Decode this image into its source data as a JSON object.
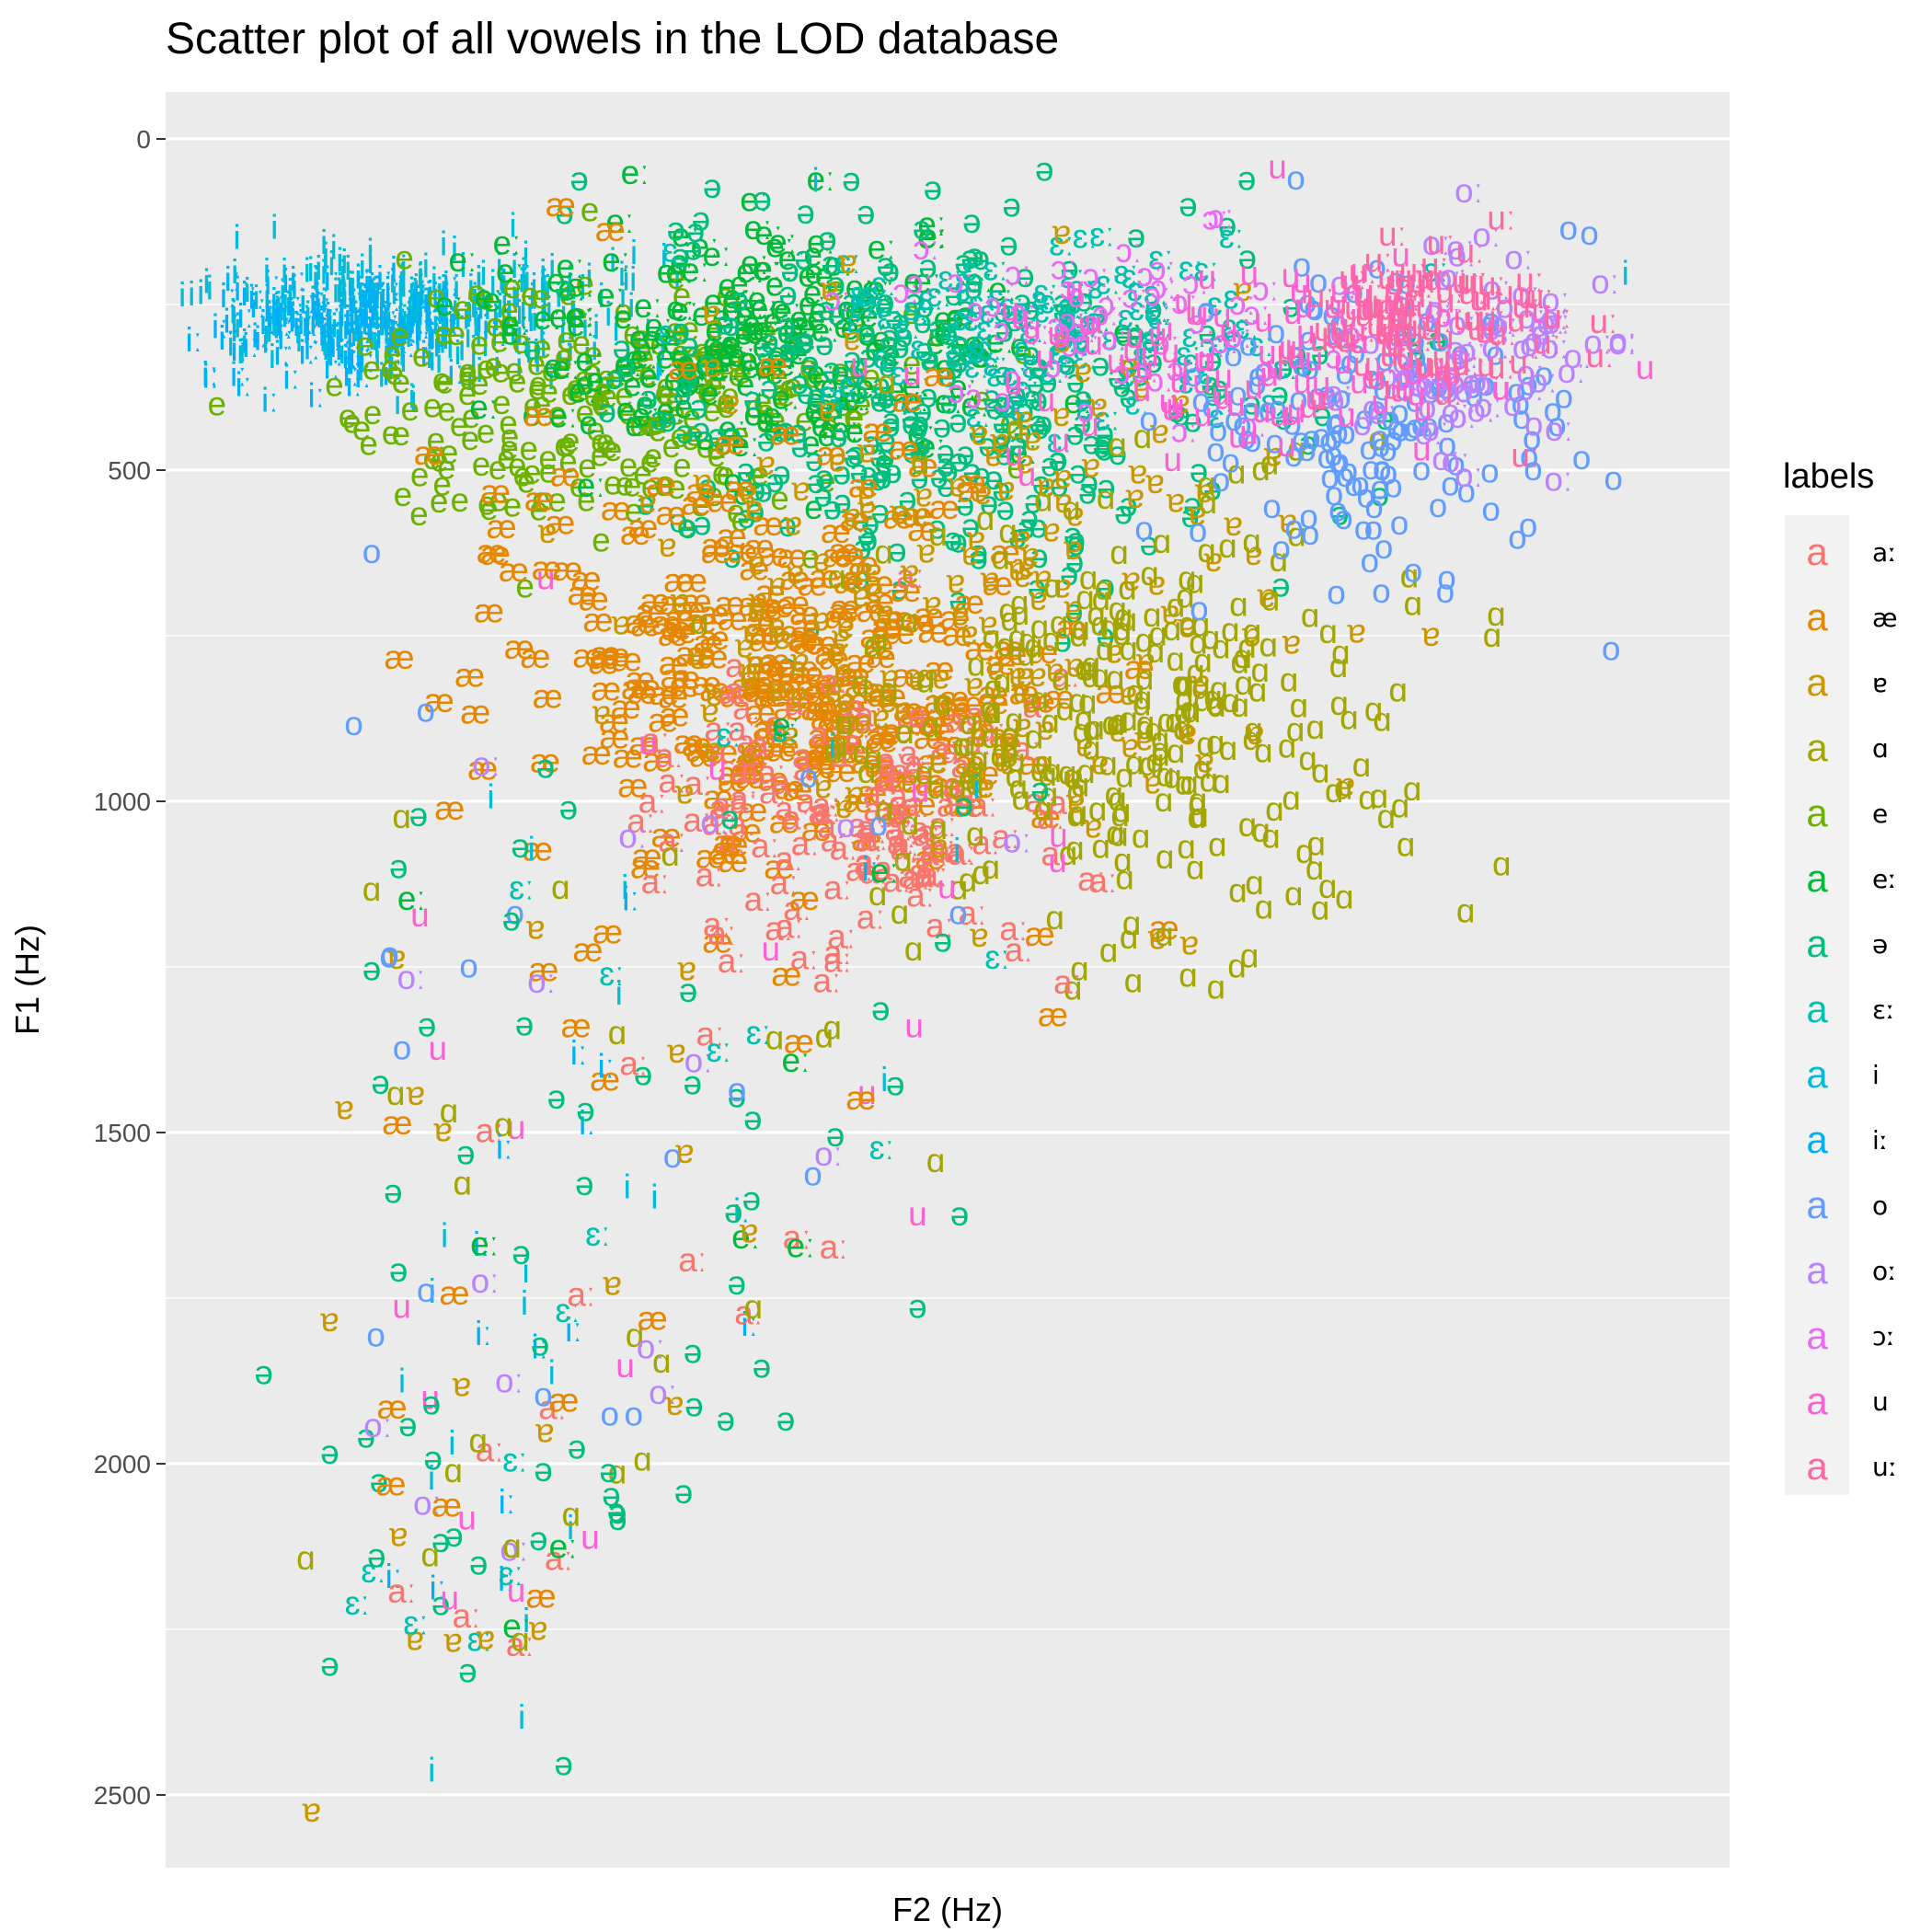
{
  "chart_data": {
    "type": "scatter",
    "title": "Scatter plot of all vowels in the LOD database",
    "xlabel": "F2 (Hz)",
    "ylabel": "F1 (Hz)",
    "ylim": [
      0,
      2600
    ],
    "y_reversed": true,
    "y_ticks": [
      0,
      500,
      1000,
      1500,
      2000,
      2500
    ],
    "x_ticks_shown": false,
    "grid": true,
    "legend": {
      "title": "labels",
      "placement": "right",
      "key_glyph": "a",
      "entries": [
        {
          "label": "aː",
          "color": "#F8766D"
        },
        {
          "label": "æ",
          "color": "#E58700"
        },
        {
          "label": "ɐ",
          "color": "#C99800"
        },
        {
          "label": "ɑ",
          "color": "#A3A500"
        },
        {
          "label": "e",
          "color": "#6BB100"
        },
        {
          "label": "eː",
          "color": "#00BA38"
        },
        {
          "label": "ə",
          "color": "#00BF7D"
        },
        {
          "label": "ɛː",
          "color": "#00C0AF"
        },
        {
          "label": "i",
          "color": "#00BCD8"
        },
        {
          "label": "iː",
          "color": "#00B0F6"
        },
        {
          "label": "o",
          "color": "#619CFF"
        },
        {
          "label": "oː",
          "color": "#B983FF"
        },
        {
          "label": "ɔː",
          "color": "#E76BF3"
        },
        {
          "label": "u",
          "color": "#FD61D1"
        },
        {
          "label": "uː",
          "color": "#FF67A4"
        }
      ]
    },
    "x_range": [
      500,
      3000
    ],
    "clusters": [
      {
        "label": "i",
        "cx": 860,
        "cy": 280,
        "sx": 200,
        "sy": 50,
        "n": 340
      },
      {
        "label": "iː",
        "cx": 760,
        "cy": 300,
        "sx": 130,
        "sy": 40,
        "n": 160
      },
      {
        "label": "e",
        "cx": 1200,
        "cy": 420,
        "sx": 230,
        "sy": 90,
        "n": 260
      },
      {
        "label": "eː",
        "cx": 1450,
        "cy": 320,
        "sx": 230,
        "sy": 90,
        "n": 220
      },
      {
        "label": "ə",
        "cx": 1750,
        "cy": 420,
        "sx": 280,
        "sy": 150,
        "n": 330
      },
      {
        "label": "ɛː",
        "cx": 1900,
        "cy": 300,
        "sx": 200,
        "sy": 70,
        "n": 120
      },
      {
        "label": "æ",
        "cx": 1480,
        "cy": 820,
        "sx": 230,
        "sy": 170,
        "n": 320
      },
      {
        "label": "aː",
        "cx": 1580,
        "cy": 1030,
        "sx": 200,
        "sy": 110,
        "n": 150
      },
      {
        "label": "ɐ",
        "cx": 1780,
        "cy": 700,
        "sx": 300,
        "sy": 200,
        "n": 180
      },
      {
        "label": "ɑ",
        "cx": 2050,
        "cy": 900,
        "sx": 220,
        "sy": 170,
        "n": 300
      },
      {
        "label": "o",
        "cx": 2470,
        "cy": 440,
        "sx": 160,
        "sy": 110,
        "n": 170
      },
      {
        "label": "oː",
        "cx": 2650,
        "cy": 350,
        "sx": 110,
        "sy": 80,
        "n": 80
      },
      {
        "label": "ɔː",
        "cx": 2050,
        "cy": 280,
        "sx": 250,
        "sy": 70,
        "n": 60
      },
      {
        "label": "u",
        "cx": 2280,
        "cy": 340,
        "sx": 230,
        "sy": 70,
        "n": 110
      },
      {
        "label": "uː",
        "cx": 2560,
        "cy": 290,
        "sx": 110,
        "sy": 55,
        "n": 100
      }
    ],
    "outliers": [
      {
        "label": "i",
        "x": 1530,
        "y": 80
      },
      {
        "label": "o",
        "x": 2820,
        "y": 160
      },
      {
        "label": "i",
        "x": 2880,
        "y": 220
      },
      {
        "label": "u",
        "x": 2300,
        "y": 60
      },
      {
        "label": "o",
        "x": 790,
        "y": 640
      },
      {
        "label": "æ",
        "x": 990,
        "y": 640
      },
      {
        "label": "u",
        "x": 1080,
        "y": 680
      },
      {
        "label": "o",
        "x": 760,
        "y": 900
      },
      {
        "label": "o",
        "x": 880,
        "y": 880
      },
      {
        "label": "ɑ",
        "x": 840,
        "y": 1040
      },
      {
        "label": "ɑ",
        "x": 790,
        "y": 1150
      },
      {
        "label": "ə",
        "x": 790,
        "y": 1270
      },
      {
        "label": "ɐ",
        "x": 745,
        "y": 1480
      },
      {
        "label": "ə",
        "x": 610,
        "y": 1880
      },
      {
        "label": "ɐ",
        "x": 720,
        "y": 1800
      },
      {
        "label": "ə",
        "x": 720,
        "y": 2000
      },
      {
        "label": "oː",
        "x": 800,
        "y": 1960
      },
      {
        "label": "ɑ",
        "x": 680,
        "y": 2160
      },
      {
        "label": "ə",
        "x": 720,
        "y": 2320
      },
      {
        "label": "i",
        "x": 890,
        "y": 2480
      },
      {
        "label": "ɐ",
        "x": 690,
        "y": 2540
      },
      {
        "label": "ə",
        "x": 1110,
        "y": 2470
      },
      {
        "label": "i",
        "x": 1040,
        "y": 2400
      },
      {
        "label": "aː",
        "x": 840,
        "y": 2210
      },
      {
        "label": "u",
        "x": 920,
        "y": 2220
      },
      {
        "label": "ə",
        "x": 950,
        "y": 2330
      },
      {
        "label": "ɐ",
        "x": 980,
        "y": 2280
      },
      {
        "label": "ə",
        "x": 1200,
        "y": 2100
      },
      {
        "label": "ə",
        "x": 1310,
        "y": 2060
      },
      {
        "label": "ə",
        "x": 1380,
        "y": 1950
      },
      {
        "label": "ə",
        "x": 1440,
        "y": 1870
      },
      {
        "label": "u",
        "x": 1700,
        "y": 1640
      },
      {
        "label": "ə",
        "x": 1770,
        "y": 1640
      },
      {
        "label": "ə",
        "x": 1700,
        "y": 1780
      },
      {
        "label": "aː",
        "x": 1560,
        "y": 1690
      },
      {
        "label": "ɛː",
        "x": 1640,
        "y": 1540
      },
      {
        "label": "ɑ",
        "x": 1730,
        "y": 1560
      },
      {
        "label": "u",
        "x": 900,
        "y": 1390
      },
      {
        "label": "u",
        "x": 840,
        "y": 1780
      },
      {
        "label": "i",
        "x": 1090,
        "y": 1880
      },
      {
        "label": "ə",
        "x": 1480,
        "y": 1950
      },
      {
        "label": "ɑ",
        "x": 1970,
        "y": 1270
      },
      {
        "label": "aː",
        "x": 1950,
        "y": 1290
      }
    ]
  }
}
